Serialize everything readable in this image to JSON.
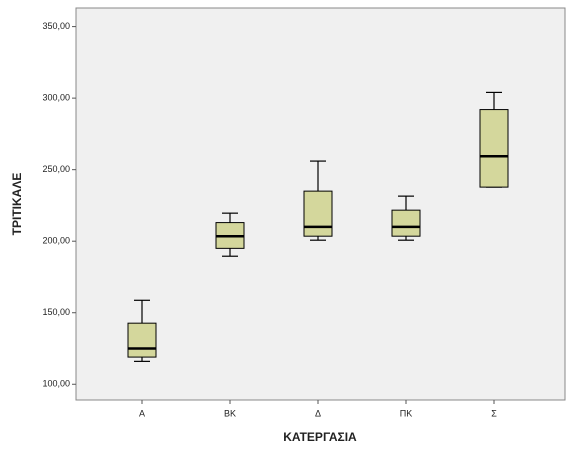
{
  "chart_data": {
    "type": "box",
    "x_label": "ΚΑΤΕΡΓΑΣΙΑ",
    "y_label": "ΤΡΙΤΙΚΑΛΕ",
    "categories": [
      "Α",
      "ΒΚ",
      "Δ",
      "ΠΚ",
      "Σ"
    ],
    "boxes": [
      {
        "min": 116,
        "q1": 119,
        "median": 125,
        "q3": 142.7,
        "max": 158.7
      },
      {
        "min": 189.5,
        "q1": 195,
        "median": 203.5,
        "q3": 213,
        "max": 219.6
      },
      {
        "min": 200.7,
        "q1": 203.5,
        "median": 210,
        "q3": 235,
        "max": 256
      },
      {
        "min": 200.7,
        "q1": 203.5,
        "median": 210,
        "q3": 221.7,
        "max": 231.5
      },
      {
        "min": 237.8,
        "q1": 237.8,
        "median": 259.4,
        "q3": 292,
        "max": 304
      }
    ],
    "color": "#d4d79c",
    "ylim": [
      89,
      363
    ],
    "yticks": [
      {
        "value": 100,
        "label": "100,00"
      },
      {
        "value": 150,
        "label": "150,00"
      },
      {
        "value": 200,
        "label": "200,00"
      },
      {
        "value": 250,
        "label": "250,00"
      },
      {
        "value": 300,
        "label": "300,00"
      },
      {
        "value": 350,
        "label": "350,00"
      }
    ]
  }
}
